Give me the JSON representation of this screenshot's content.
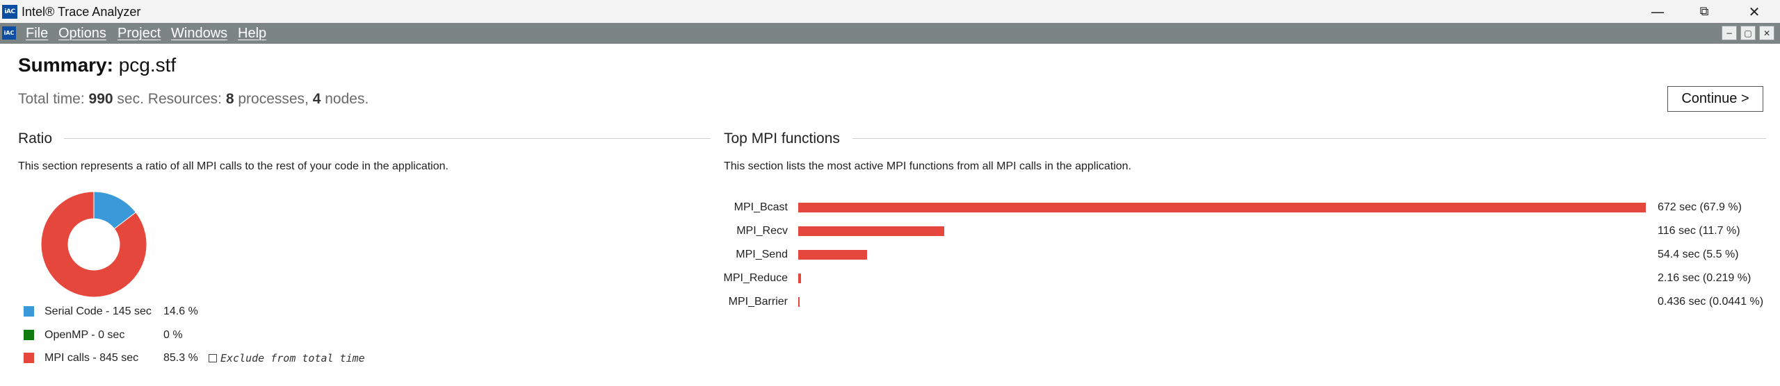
{
  "window": {
    "logo": "iAC",
    "title": "Intel® Trace Analyzer",
    "controls": [
      {
        "name": "minimize",
        "glyph": "—"
      },
      {
        "name": "restore",
        "glyph": "⧉"
      },
      {
        "name": "close",
        "glyph": "✕"
      }
    ]
  },
  "menu": {
    "logo": "iAC",
    "items": [
      "File",
      "Options",
      "Project",
      "Windows",
      "Help"
    ],
    "mdi_controls": [
      "−",
      "▢",
      "✕"
    ]
  },
  "summary": {
    "label": "Summary:",
    "file": "pcg.stf",
    "totals_prefix": "Total time: ",
    "total_time": "990",
    "totals_mid1": " sec. Resources: ",
    "processes": "8",
    "totals_mid2": " processes, ",
    "nodes": "4",
    "totals_suffix": " nodes.",
    "continue_label": "Continue >"
  },
  "ratio": {
    "heading": "Ratio",
    "description": "This section represents a ratio of all MPI calls to the rest of your code in the application.",
    "legend": [
      {
        "label": "Serial Code - 145 sec",
        "pct": "14.6 %",
        "fraction": 0.146,
        "color": "#3a9ad9"
      },
      {
        "label": "OpenMP - 0 sec",
        "pct": "0 %",
        "fraction": 0.0,
        "color": "#107c10"
      },
      {
        "label": "MPI calls - 845 sec",
        "pct": "85.3 %",
        "fraction": 0.853,
        "color": "#e6473d"
      }
    ],
    "exclude_label": "Exclude from total time",
    "exclude_checked": false
  },
  "top_mpi": {
    "heading": "Top MPI functions",
    "description": "This section lists the most active MPI functions from all MPI calls in the application.",
    "bar_color": "#e6473d",
    "functions": [
      {
        "name": "MPI_Bcast",
        "seconds": 672,
        "value_label": "672 sec (67.9 %)"
      },
      {
        "name": "MPI_Recv",
        "seconds": 116,
        "value_label": "116 sec (11.7 %)"
      },
      {
        "name": "MPI_Send",
        "seconds": 54.4,
        "value_label": "54.4 sec (5.5 %)"
      },
      {
        "name": "MPI_Reduce",
        "seconds": 2.16,
        "value_label": "2.16 sec (0.219 %)"
      },
      {
        "name": "MPI_Barrier",
        "seconds": 0.436,
        "value_label": "0.436 sec (0.0441 %)"
      }
    ]
  }
}
